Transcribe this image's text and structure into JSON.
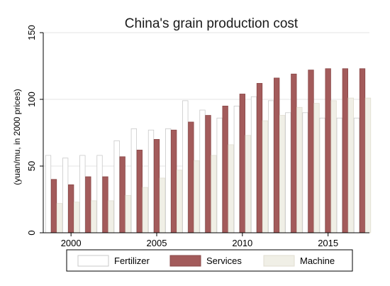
{
  "chart_data": {
    "type": "bar",
    "title": "China's grain production cost",
    "ylabel": "(yuan/mu, in 2000 prices)",
    "xlabel": "",
    "ylim": [
      0,
      150
    ],
    "yticks": [
      0,
      50,
      100,
      150
    ],
    "xticks": [
      2000,
      2005,
      2010,
      2015
    ],
    "grid": true,
    "legend_position": "bottom",
    "categories": [
      1999,
      2000,
      2001,
      2002,
      2003,
      2004,
      2005,
      2006,
      2007,
      2008,
      2009,
      2010,
      2011,
      2012,
      2013,
      2014,
      2015,
      2016,
      2017
    ],
    "series": [
      {
        "name": "Fertilizer",
        "color": "#ffffff",
        "stroke": "#c9c9c9",
        "values": [
          58,
          56,
          58,
          58,
          69,
          78,
          77,
          78,
          99,
          92,
          86,
          95,
          102,
          99,
          90,
          90,
          86,
          86,
          86
        ]
      },
      {
        "name": "Services",
        "color": "#a35b5b",
        "stroke": "#8a4848",
        "values": [
          40,
          36,
          42,
          42,
          57,
          62,
          70,
          77,
          83,
          88,
          95,
          104,
          112,
          116,
          119,
          122,
          123,
          123,
          123
        ]
      },
      {
        "name": "Machine",
        "color": "#f0efe6",
        "stroke": "#e0ddd0",
        "values": [
          22,
          23,
          24,
          24,
          28,
          34,
          41,
          47,
          54,
          58,
          66,
          73,
          84,
          88,
          94,
          97,
          99,
          101,
          101
        ]
      }
    ]
  }
}
